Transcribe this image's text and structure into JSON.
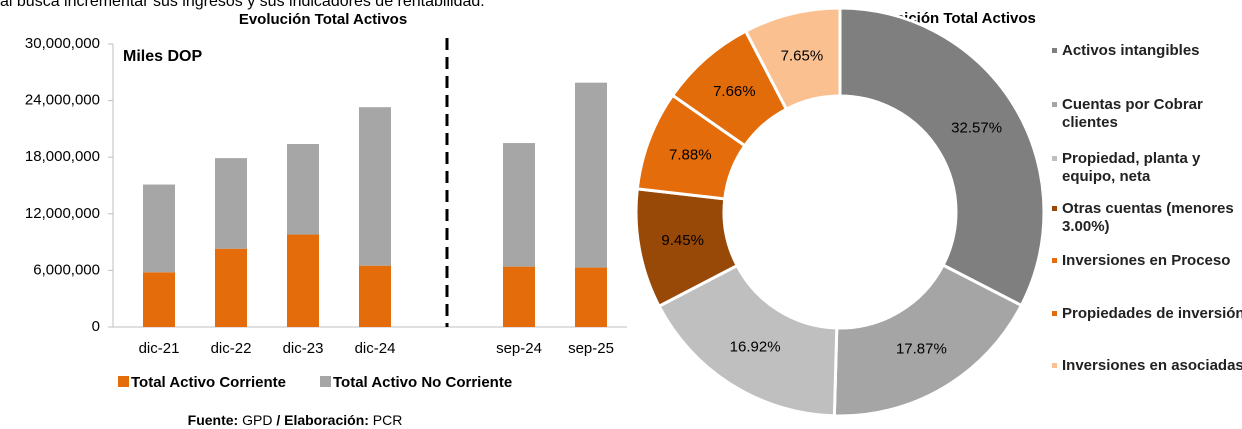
{
  "intro_text": "al busca incrementar sus ingresos y sus indicadores de rentabilidad.",
  "footer": {
    "source_label": "Fuente:",
    "source": "GPD",
    "separator": "/",
    "credit_label": "Elaboración:",
    "credit": "PCR"
  },
  "chart_data": [
    {
      "type": "bar",
      "stacked": true,
      "title": "Evolución Total Activos",
      "annotation": "Miles DOP",
      "categories": [
        "dic-21",
        "dic-22",
        "dic-23",
        "dic-24",
        null,
        "sep-24",
        "sep-25"
      ],
      "series": [
        {
          "name": "Total Activo Corriente",
          "color": "#e46c0a",
          "values": [
            5800000,
            8300000,
            9800000,
            6500000,
            null,
            6400000,
            6300000
          ]
        },
        {
          "name": "Total Activo No Corriente",
          "color": "#a6a6a6",
          "values": [
            9300000,
            9600000,
            9600000,
            16800000,
            null,
            13100000,
            19600000
          ]
        }
      ],
      "ylim": [
        0,
        30000000
      ],
      "yticks": [
        0,
        {
          "value": 6000000,
          "label": "6,000,000"
        },
        {
          "value": 12000000,
          "label": "12,000,000"
        },
        {
          "value": 18000000,
          "label": "18,000,000"
        },
        {
          "value": 24000000,
          "label": "24,000,000"
        },
        {
          "value": 30000000,
          "label": "30,000,000"
        }
      ],
      "grid": false,
      "legend": "bottom"
    },
    {
      "type": "donut",
      "title": "Composición Total Activos",
      "categories": [
        "Activos intangibles",
        "Cuentas por Cobrar clientes",
        "Propiedad, planta y equipo, neta",
        "Otras cuentas (menores 3.00%)",
        "Inversiones en Proceso",
        "Propiedades de inversión",
        "Inversiones en asociadas"
      ],
      "values": [
        32.57,
        17.87,
        16.92,
        9.45,
        7.88,
        7.66,
        7.65
      ],
      "value_labels": [
        "32.57%",
        "17.87%",
        "16.92%",
        "9.45%",
        "7.88%",
        "7.66%",
        "7.65%"
      ],
      "colors": [
        "#7f7f7f",
        "#a5a5a5",
        "#bfbfbf",
        "#984807",
        "#e46c0a",
        "#e26b0a",
        "#fac090"
      ],
      "legend": "right"
    }
  ]
}
